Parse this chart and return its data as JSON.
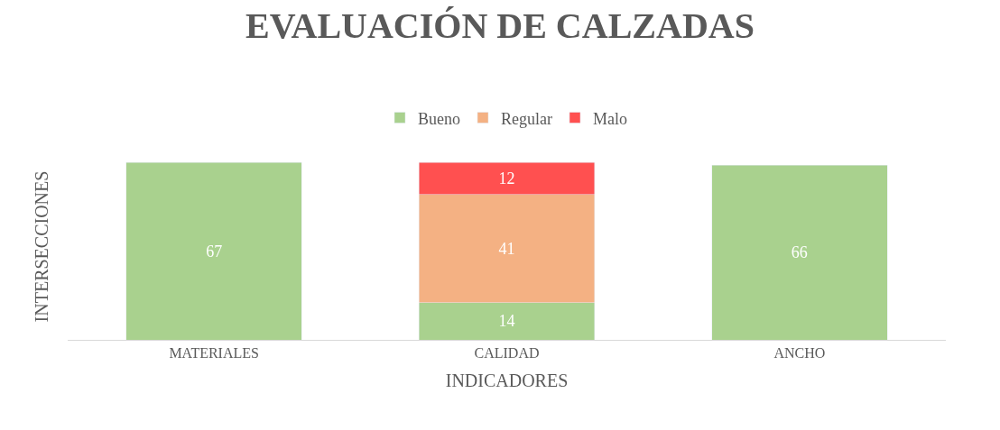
{
  "chart_data": {
    "type": "bar",
    "title": "EVALUACIÓN DE CALZADAS",
    "xlabel": "INDICADORES",
    "ylabel": "INTERSECCIONES",
    "categories": [
      "MATERIALES",
      "CALIDAD",
      "ANCHO"
    ],
    "stacked": true,
    "data_labels": true,
    "legend": "top",
    "tick_labels": "x",
    "series": [
      {
        "name": "Bueno",
        "color": "#a9d18e",
        "values": [
          67,
          14,
          66
        ]
      },
      {
        "name": "Regular",
        "color": "#f4b183",
        "values": [
          null,
          41,
          null
        ]
      },
      {
        "name": "Malo",
        "color": "#ff5050",
        "values": [
          null,
          12,
          null
        ]
      }
    ]
  }
}
